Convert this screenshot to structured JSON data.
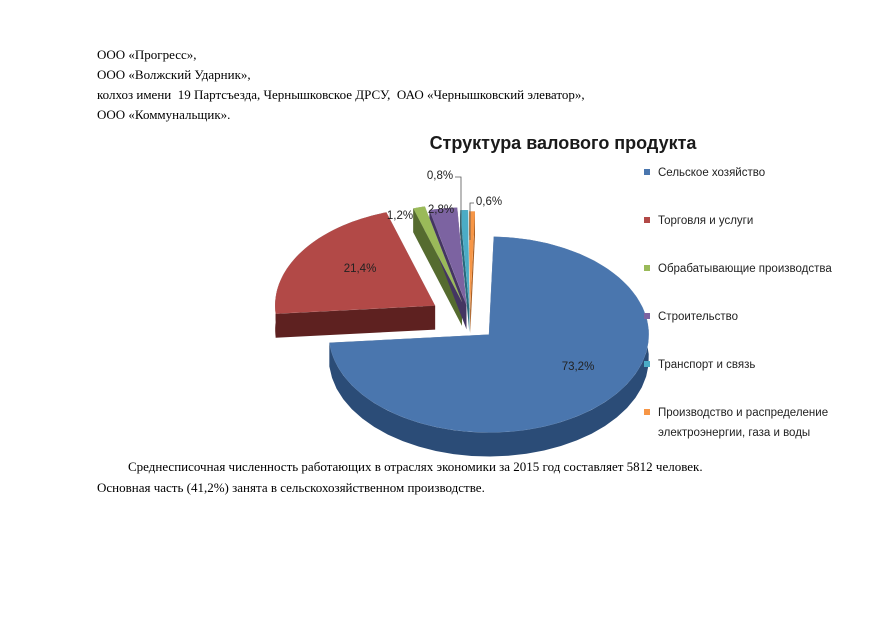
{
  "doc": {
    "lines": [
      "ООО «Прогресс»,",
      "ООО «Волжский Ударник»,",
      "колхоз имени  19 Партсъезда, Чернышковское ДРСУ,  ОАО «Чернышковский элеватор»,",
      "ООО «Коммунальщик»."
    ],
    "paragraph_1": "Среднесписочная численность работающих в отраслях экономики за 2015 год составляет 5812 человек.",
    "paragraph_2": "Основная часть (41,2%) занята в сельскохозяйственном производстве."
  },
  "chart_data": {
    "type": "pie",
    "title": "Структура валового продукта",
    "slices": [
      {
        "label": "Сельское хозяйство",
        "value": 73.2,
        "value_label": "73,2%",
        "color": "#4a76ae",
        "dark": "#2b4c77"
      },
      {
        "label": "Торговля и услуги",
        "value": 21.4,
        "value_label": "21,4%",
        "color": "#b24947",
        "dark": "#5e2120"
      },
      {
        "label": "Обрабатывающие производства",
        "value": 1.2,
        "value_label": "1,2%",
        "color": "#9aba59",
        "dark": "#556b2f"
      },
      {
        "label": "Строительство",
        "value": 2.8,
        "value_label": "2,8%",
        "color": "#7c63a1",
        "dark": "#443562"
      },
      {
        "label": "Транспорт и связь",
        "value": 0.8,
        "value_label": "0,8%",
        "color": "#4bacc6",
        "dark": "#276a7d"
      },
      {
        "label": "Производство и распределение электроэнергии, газа и воды",
        "value": 0.6,
        "value_label": "0,6%",
        "color": "#f79646",
        "dark": "#a85c1f"
      }
    ],
    "legend_position": "right"
  }
}
